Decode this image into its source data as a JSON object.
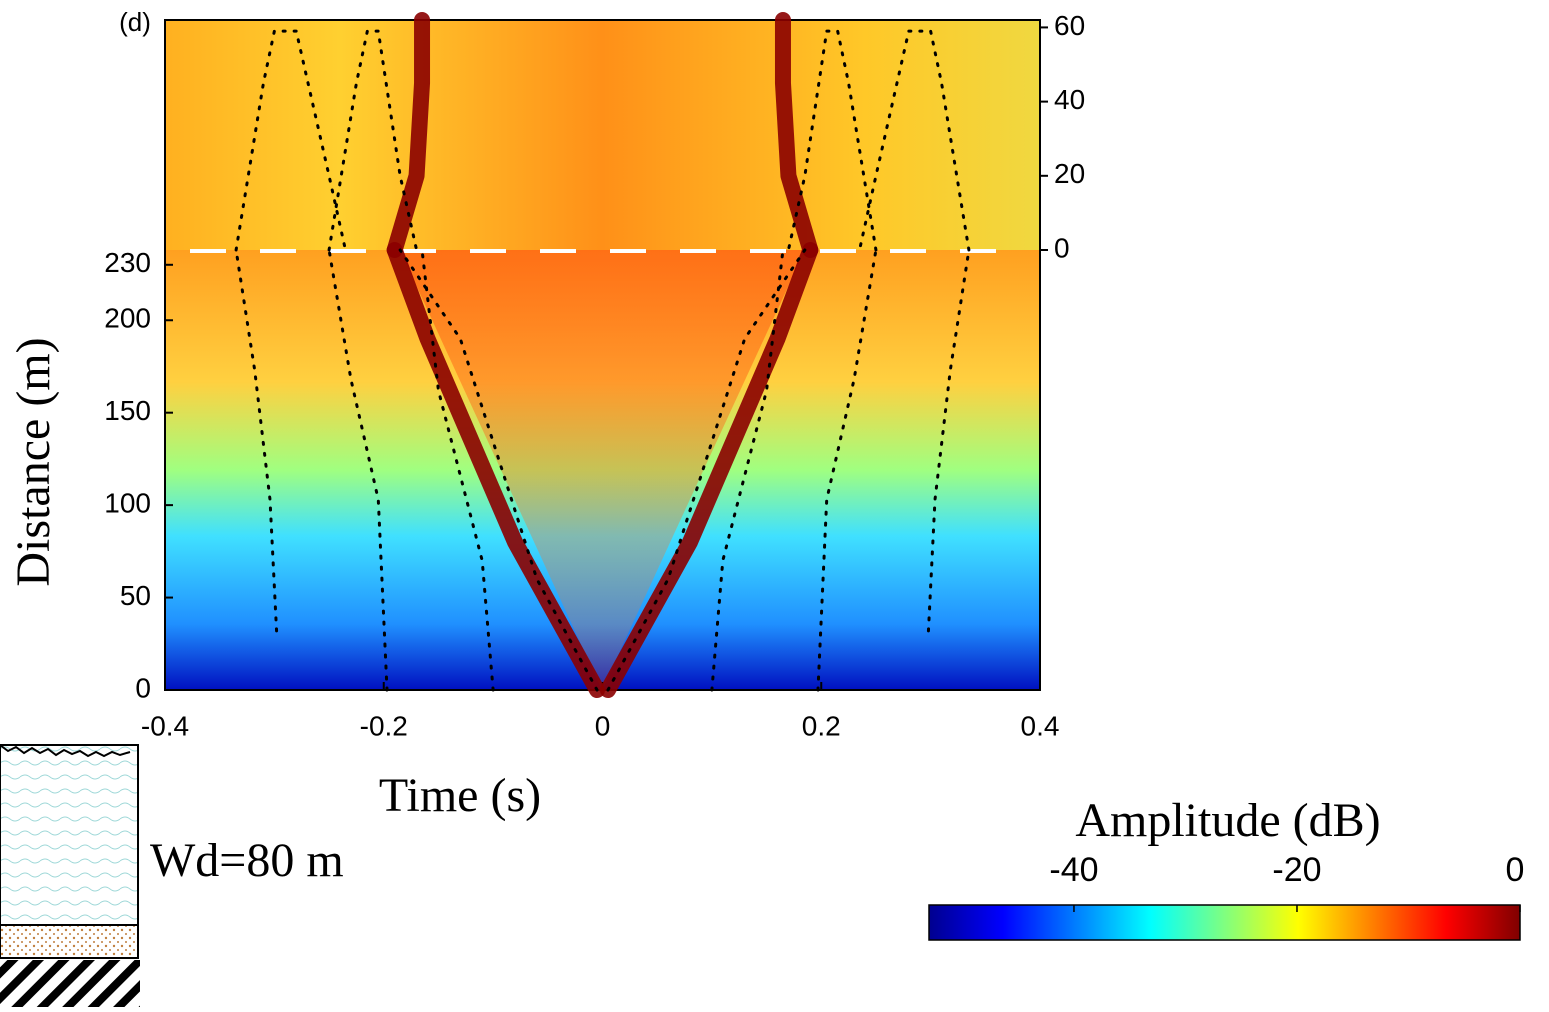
{
  "chart_data": {
    "type": "heatmap",
    "panel_label": "(d)",
    "xlabel": "Time (s)",
    "ylabel": "Distance (m)",
    "annotation": "Wd=80 m",
    "xlim": [
      -0.4,
      0.4
    ],
    "xticks": [
      -0.4,
      -0.2,
      0,
      0.2,
      0.4
    ],
    "ylim": [
      0,
      238
    ],
    "yticks": [
      0,
      50,
      100,
      150,
      200,
      230
    ],
    "y2lim": [
      0,
      62
    ],
    "y2ticks": [
      0,
      20,
      40,
      60
    ],
    "colorbar": {
      "label": "Amplitude (dB)",
      "clim": [
        -53,
        0
      ],
      "ticks": [
        -40,
        -20,
        0
      ]
    },
    "ridges": [
      {
        "color": "#8b0000",
        "x": [
          -0.005,
          -0.08,
          -0.16,
          -0.19
        ],
        "y": [
          0,
          80,
          190,
          238
        ]
      },
      {
        "color": "#8b0000",
        "x": [
          0.005,
          0.08,
          0.16,
          0.19
        ],
        "y": [
          0,
          80,
          190,
          238
        ]
      },
      {
        "color": "#8b0000",
        "axis": "y2",
        "x": [
          -0.19,
          -0.17,
          -0.165,
          -0.165
        ],
        "y": [
          0,
          20,
          45,
          62
        ]
      },
      {
        "color": "#8b0000",
        "axis": "y2",
        "x": [
          0.19,
          0.17,
          0.165,
          0.165
        ],
        "y": [
          0,
          20,
          45,
          62
        ]
      }
    ],
    "dotted_lines": [
      {
        "color": "#000000",
        "x": [
          -0.005,
          -0.06,
          -0.13,
          -0.185
        ],
        "y": [
          0,
          60,
          190,
          238
        ]
      },
      {
        "color": "#000000",
        "x": [
          0.005,
          0.06,
          0.13,
          0.185
        ],
        "y": [
          0,
          60,
          190,
          238
        ]
      },
      {
        "color": "#000000",
        "x": [
          -0.1,
          -0.11,
          -0.15,
          -0.165
        ],
        "y": [
          0,
          70,
          162,
          238
        ]
      },
      {
        "color": "#000000",
        "x": [
          0.1,
          0.11,
          0.15,
          0.165
        ],
        "y": [
          0,
          70,
          162,
          238
        ]
      },
      {
        "color": "#000000",
        "x": [
          -0.197,
          -0.205,
          -0.23,
          -0.25
        ],
        "y": [
          0,
          103,
          168,
          238
        ]
      },
      {
        "color": "#000000",
        "x": [
          0.197,
          0.205,
          0.23,
          0.25
        ],
        "y": [
          0,
          103,
          168,
          238
        ]
      },
      {
        "color": "#000000",
        "x": [
          -0.298,
          -0.304,
          -0.318,
          -0.335
        ],
        "y": [
          32,
          103,
          173,
          238
        ]
      },
      {
        "color": "#000000",
        "x": [
          0.298,
          0.304,
          0.318,
          0.335
        ],
        "y": [
          32,
          103,
          173,
          238
        ]
      },
      {
        "color": "#000000",
        "axis": "y2",
        "x": [
          -0.335,
          -0.31,
          -0.3,
          -0.28,
          -0.25,
          -0.235
        ],
        "y": [
          0,
          45,
          59,
          59,
          20,
          0
        ]
      },
      {
        "color": "#000000",
        "axis": "y2",
        "x": [
          0.335,
          0.31,
          0.3,
          0.28,
          0.25,
          0.235
        ],
        "y": [
          0,
          45,
          59,
          59,
          20,
          0
        ]
      },
      {
        "color": "#000000",
        "axis": "y2",
        "x": [
          -0.25,
          -0.225,
          -0.215,
          -0.205,
          -0.185,
          -0.17
        ],
        "y": [
          0,
          45,
          59,
          59,
          20,
          0
        ]
      },
      {
        "color": "#000000",
        "axis": "y2",
        "x": [
          0.25,
          0.225,
          0.215,
          0.205,
          0.185,
          0.17
        ],
        "y": [
          0,
          45,
          59,
          59,
          20,
          0
        ]
      }
    ]
  }
}
